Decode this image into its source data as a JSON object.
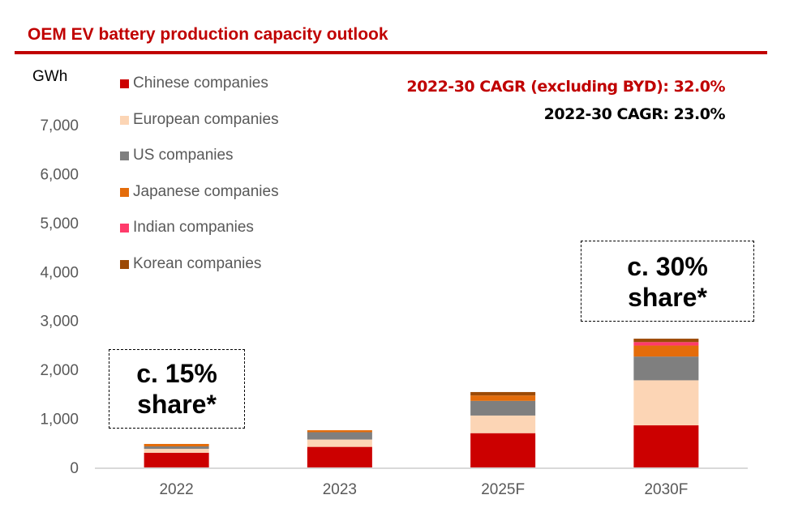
{
  "chart_data": {
    "type": "bar",
    "stacked": true,
    "title": "OEM EV battery production capacity outlook",
    "ylabel": "GWh",
    "ylim": [
      0,
      7000
    ],
    "yticks": [
      0,
      1000,
      2000,
      3000,
      4000,
      5000,
      6000,
      7000
    ],
    "ytick_labels": [
      "0",
      "1,000",
      "2,000",
      "3,000",
      "4,000",
      "5,000",
      "6,000",
      "7,000"
    ],
    "grid": false,
    "legend_position": "top-left",
    "categories": [
      "2022",
      "2023",
      "2025F",
      "2030F"
    ],
    "series": [
      {
        "name": "Chinese companies",
        "color": "#cc0000",
        "values": [
          300,
          420,
          700,
          860
        ]
      },
      {
        "name": "European companies",
        "color": "#fcd5b5",
        "values": [
          80,
          150,
          360,
          920
        ]
      },
      {
        "name": "US companies",
        "color": "#7f7f7f",
        "values": [
          50,
          150,
          300,
          485
        ]
      },
      {
        "name": "Japanese companies",
        "color": "#e46c0a",
        "values": [
          50,
          40,
          110,
          225
        ]
      },
      {
        "name": "Indian companies",
        "color": "#ff3b6b",
        "values": [
          0,
          0,
          0,
          70
        ]
      },
      {
        "name": "Korean companies",
        "color": "#9c4a06",
        "values": [
          0,
          0,
          70,
          70
        ]
      }
    ],
    "annotations": {
      "cagr_ex_byd": "2022-30 CAGR (excluding BYD): 32.0%",
      "cagr": "2022-30 CAGR: 23.0%",
      "box_2022": [
        "c. 15%",
        "share*"
      ],
      "box_2030": [
        "c. 30%",
        "share*"
      ]
    }
  }
}
